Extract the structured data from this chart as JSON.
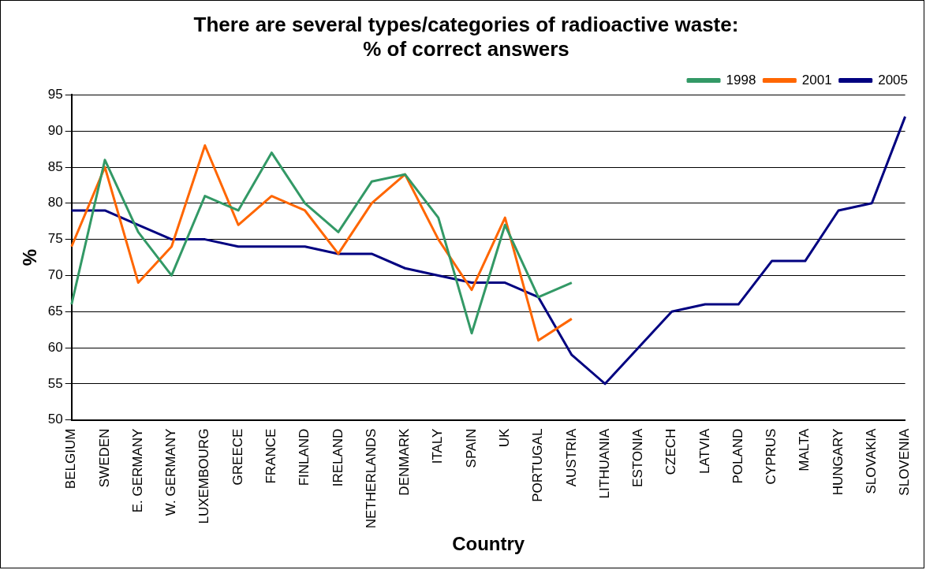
{
  "chart_data": {
    "type": "line",
    "title": "There are several types/categories of radioactive waste:\n% of correct answers",
    "xlabel": "Country",
    "ylabel": "%",
    "categories": [
      "BELGIUM",
      "SWEDEN",
      "E. GERMANY",
      "W. GERMANY",
      "LUXEMBOURG",
      "GREECE",
      "FRANCE",
      "FINLAND",
      "IRELAND",
      "NETHERLANDS",
      "DENMARK",
      "ITALY",
      "SPAIN",
      "UK",
      "PORTUGAL",
      "AUSTRIA",
      "LITHUANIA",
      "ESTONIA",
      "CZECH",
      "LATVIA",
      "POLAND",
      "CYPRUS",
      "MALTA",
      "HUNGARY",
      "SLOVAKIA",
      "SLOVENIA"
    ],
    "series": [
      {
        "name": "1998",
        "color": "#339966",
        "values": [
          66,
          86,
          76,
          70,
          81,
          79,
          87,
          80,
          76,
          83,
          84,
          78,
          62,
          77,
          67,
          69,
          null,
          null,
          null,
          null,
          null,
          null,
          null,
          null,
          null,
          null
        ]
      },
      {
        "name": "2001",
        "color": "#ff6600",
        "values": [
          74,
          85,
          69,
          74,
          88,
          77,
          81,
          79,
          73,
          80,
          84,
          75,
          68,
          78,
          61,
          64,
          null,
          null,
          null,
          null,
          null,
          null,
          null,
          null,
          null,
          null
        ]
      },
      {
        "name": "2005",
        "color": "#000080",
        "values": [
          79,
          79,
          77,
          75,
          75,
          74,
          74,
          74,
          73,
          73,
          71,
          70,
          69,
          69,
          67,
          59,
          55,
          60,
          65,
          66,
          66,
          72,
          72,
          79,
          80,
          92
        ]
      }
    ],
    "ylim": [
      50,
      95
    ],
    "yticks": [
      50,
      55,
      60,
      65,
      70,
      75,
      80,
      85,
      90,
      95
    ],
    "grid": "y",
    "legend": "top right",
    "marker": "none",
    "line_style": "solid"
  }
}
